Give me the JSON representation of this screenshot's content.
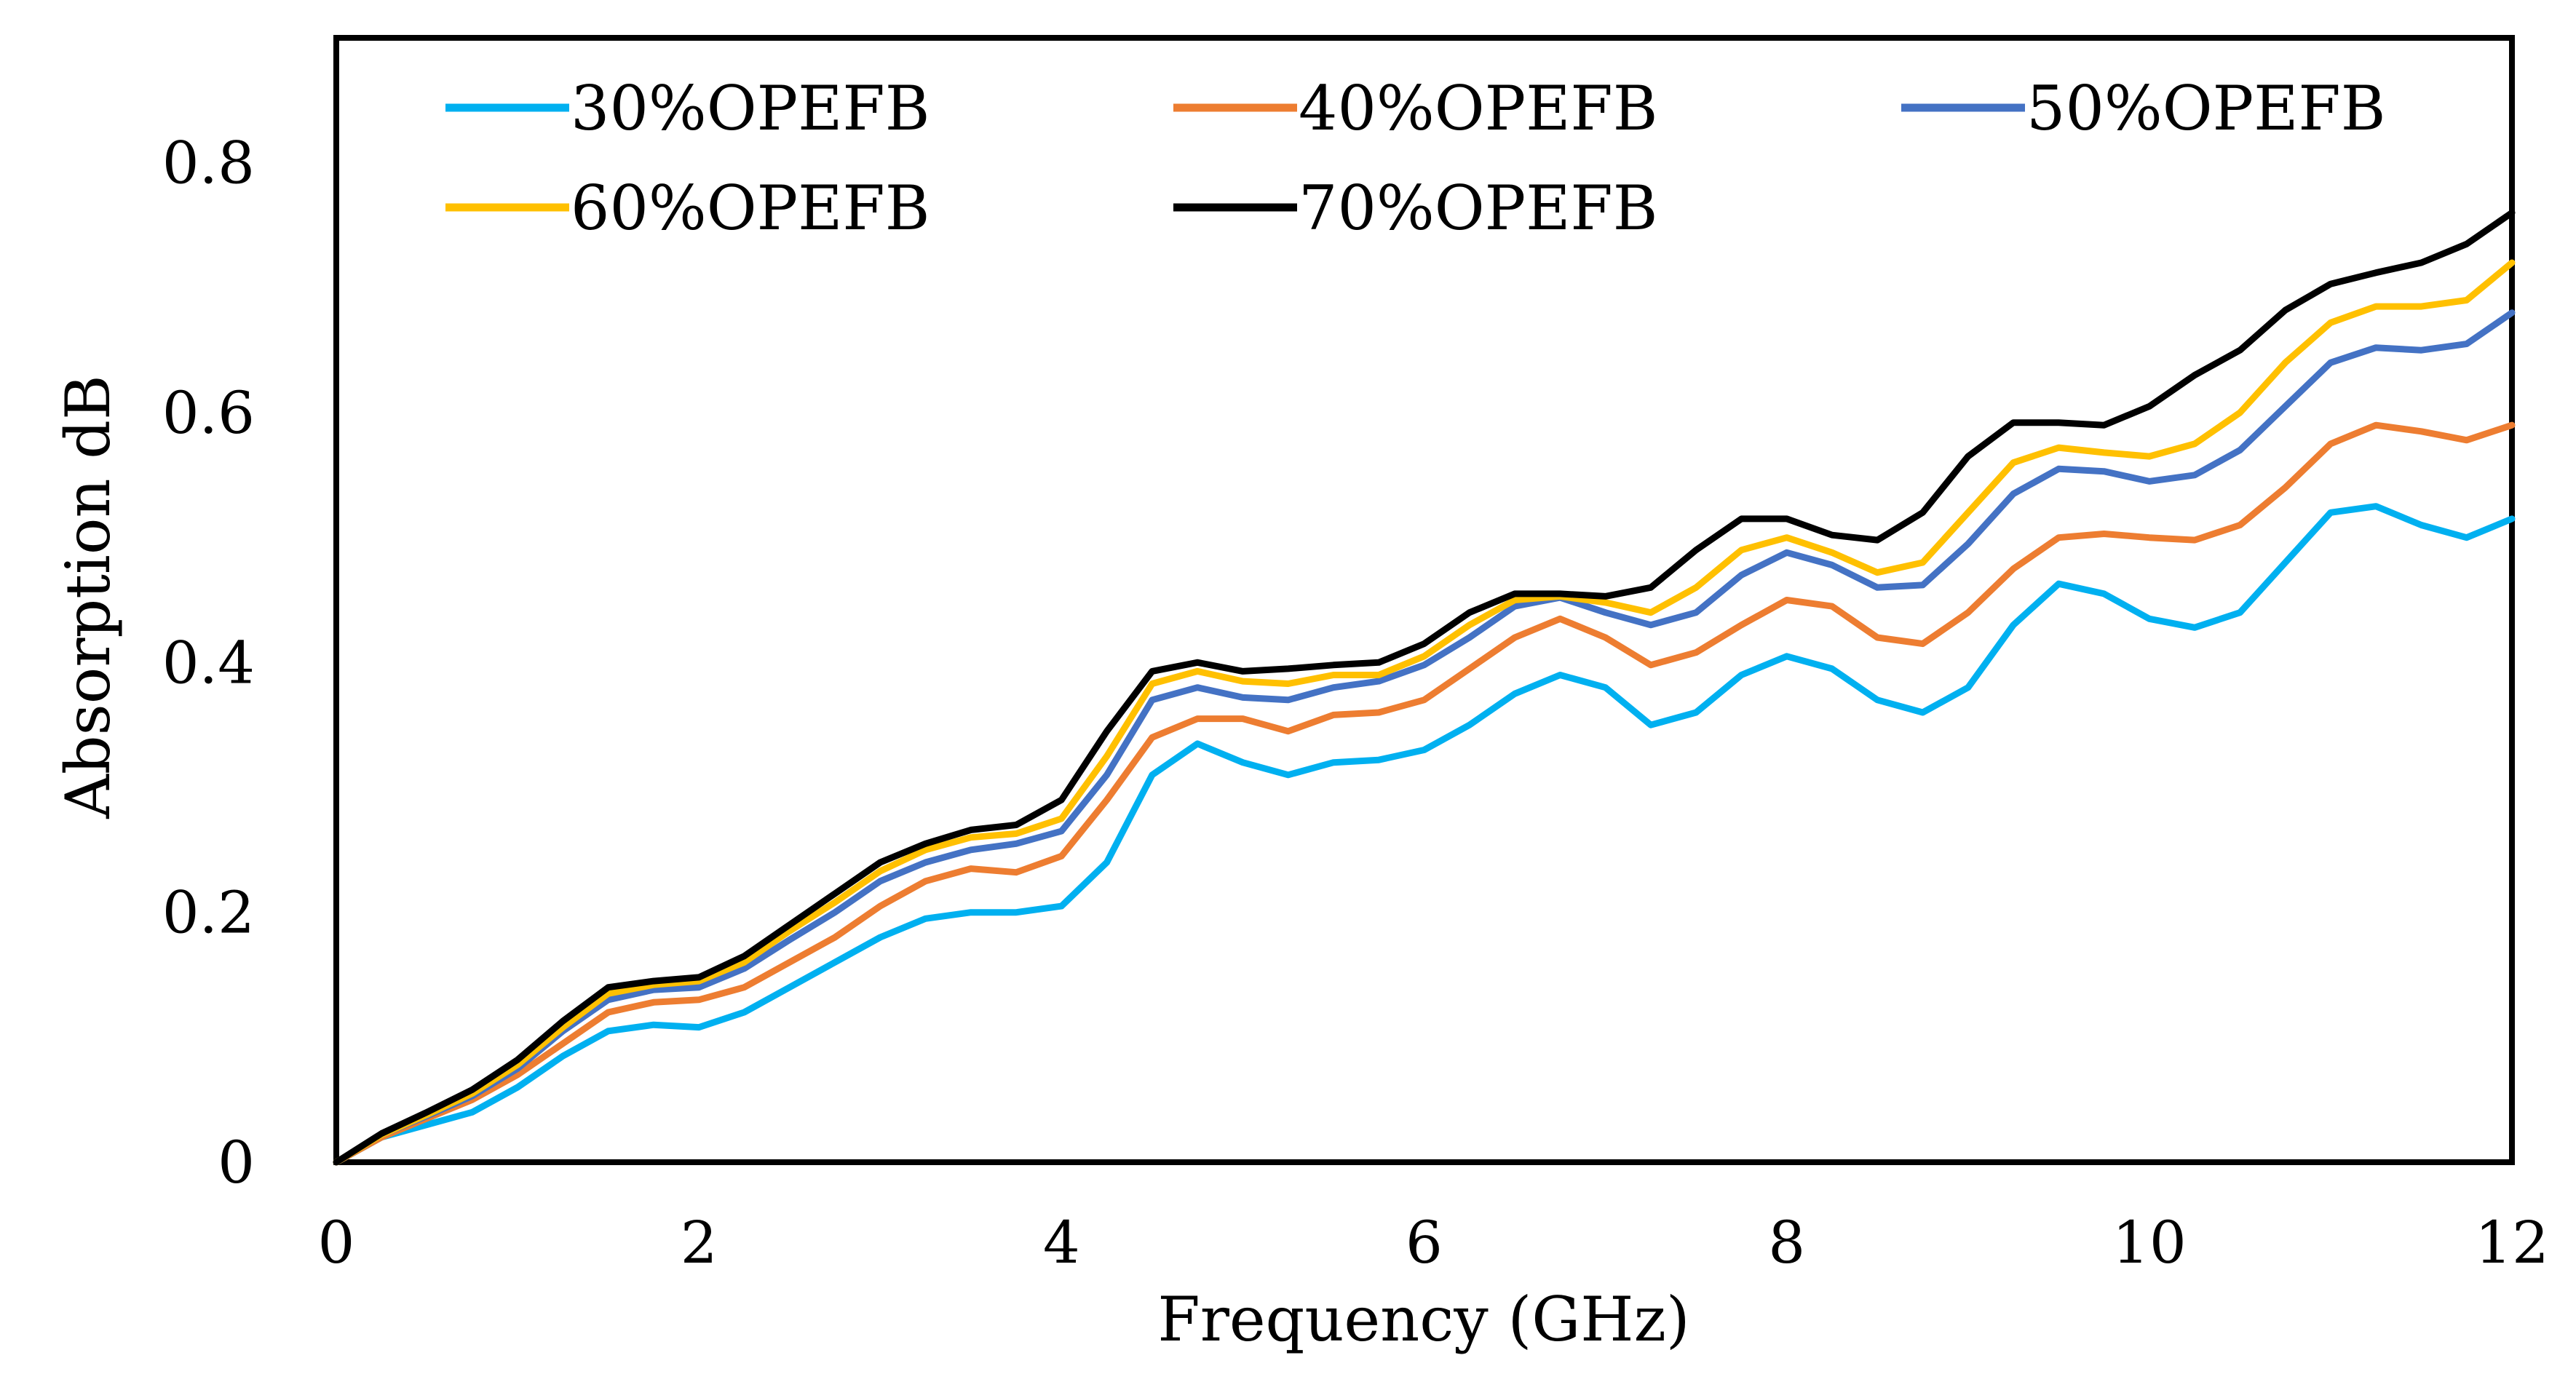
{
  "chart_data": {
    "type": "line",
    "title": "",
    "xlabel": "Frequency (GHz)",
    "ylabel": "Absorption dB",
    "xlim": [
      0,
      12
    ],
    "ylim": [
      0,
      0.9
    ],
    "x_ticks": [
      "0",
      "2",
      "4",
      "6",
      "8",
      "10",
      "12"
    ],
    "y_ticks": [
      "0",
      "0.2",
      "0.4",
      "0.6",
      "0.8"
    ],
    "grid": false,
    "legend_position": "top",
    "x": [
      0,
      0.25,
      0.5,
      0.75,
      1,
      1.25,
      1.5,
      1.75,
      2,
      2.25,
      2.5,
      2.75,
      3,
      3.25,
      3.5,
      3.75,
      4,
      4.25,
      4.5,
      4.75,
      5,
      5.25,
      5.5,
      5.75,
      6,
      6.25,
      6.5,
      6.75,
      7,
      7.25,
      7.5,
      7.75,
      8,
      8.25,
      8.5,
      8.75,
      9,
      9.25,
      9.5,
      9.75,
      10,
      10.25,
      10.5,
      10.75,
      11,
      11.25,
      11.5,
      11.75,
      12
    ],
    "series": [
      {
        "name": "30%OPEFB",
        "color": "#00b0f0",
        "values": [
          0,
          0.02,
          0.03,
          0.04,
          0.06,
          0.085,
          0.105,
          0.11,
          0.108,
          0.12,
          0.14,
          0.16,
          0.18,
          0.195,
          0.2,
          0.2,
          0.205,
          0.24,
          0.31,
          0.335,
          0.32,
          0.31,
          0.32,
          0.322,
          0.33,
          0.35,
          0.375,
          0.39,
          0.38,
          0.35,
          0.36,
          0.39,
          0.405,
          0.395,
          0.37,
          0.36,
          0.38,
          0.43,
          0.463,
          0.455,
          0.435,
          0.428,
          0.44,
          0.48,
          0.52,
          0.525,
          0.51,
          0.5,
          0.515
        ]
      },
      {
        "name": "40%OPEFB",
        "color": "#ed7d31",
        "values": [
          0,
          0.02,
          0.035,
          0.05,
          0.07,
          0.095,
          0.12,
          0.128,
          0.13,
          0.14,
          0.16,
          0.18,
          0.205,
          0.225,
          0.235,
          0.232,
          0.245,
          0.29,
          0.34,
          0.355,
          0.355,
          0.345,
          0.358,
          0.36,
          0.37,
          0.395,
          0.42,
          0.435,
          0.42,
          0.398,
          0.408,
          0.43,
          0.45,
          0.445,
          0.42,
          0.415,
          0.44,
          0.475,
          0.5,
          0.503,
          0.5,
          0.498,
          0.51,
          0.54,
          0.575,
          0.59,
          0.585,
          0.578,
          0.59
        ]
      },
      {
        "name": "50%OPEFB",
        "color": "#4472c4",
        "values": [
          0,
          0.022,
          0.037,
          0.053,
          0.075,
          0.105,
          0.13,
          0.138,
          0.14,
          0.155,
          0.178,
          0.2,
          0.225,
          0.24,
          0.25,
          0.255,
          0.265,
          0.31,
          0.37,
          0.38,
          0.372,
          0.37,
          0.38,
          0.385,
          0.398,
          0.42,
          0.445,
          0.452,
          0.44,
          0.43,
          0.44,
          0.47,
          0.488,
          0.478,
          0.46,
          0.462,
          0.495,
          0.535,
          0.555,
          0.553,
          0.545,
          0.55,
          0.57,
          0.605,
          0.64,
          0.652,
          0.65,
          0.655,
          0.68
        ]
      },
      {
        "name": "60%OPEFB",
        "color": "#ffc000",
        "values": [
          0,
          0.022,
          0.038,
          0.055,
          0.078,
          0.108,
          0.135,
          0.142,
          0.145,
          0.16,
          0.185,
          0.208,
          0.233,
          0.25,
          0.26,
          0.263,
          0.275,
          0.325,
          0.383,
          0.393,
          0.385,
          0.383,
          0.39,
          0.39,
          0.405,
          0.43,
          0.45,
          0.453,
          0.448,
          0.44,
          0.46,
          0.49,
          0.5,
          0.488,
          0.472,
          0.48,
          0.52,
          0.56,
          0.572,
          0.568,
          0.565,
          0.575,
          0.6,
          0.64,
          0.672,
          0.685,
          0.685,
          0.69,
          0.72
        ]
      },
      {
        "name": "70%OPEFB",
        "color": "#000000",
        "values": [
          0,
          0.023,
          0.04,
          0.058,
          0.082,
          0.113,
          0.14,
          0.145,
          0.148,
          0.165,
          0.19,
          0.215,
          0.24,
          0.255,
          0.266,
          0.27,
          0.29,
          0.345,
          0.393,
          0.4,
          0.393,
          0.395,
          0.398,
          0.4,
          0.415,
          0.44,
          0.455,
          0.455,
          0.453,
          0.46,
          0.49,
          0.515,
          0.515,
          0.502,
          0.498,
          0.52,
          0.565,
          0.592,
          0.592,
          0.59,
          0.605,
          0.63,
          0.65,
          0.682,
          0.703,
          0.712,
          0.72,
          0.735,
          0.76
        ]
      }
    ]
  }
}
